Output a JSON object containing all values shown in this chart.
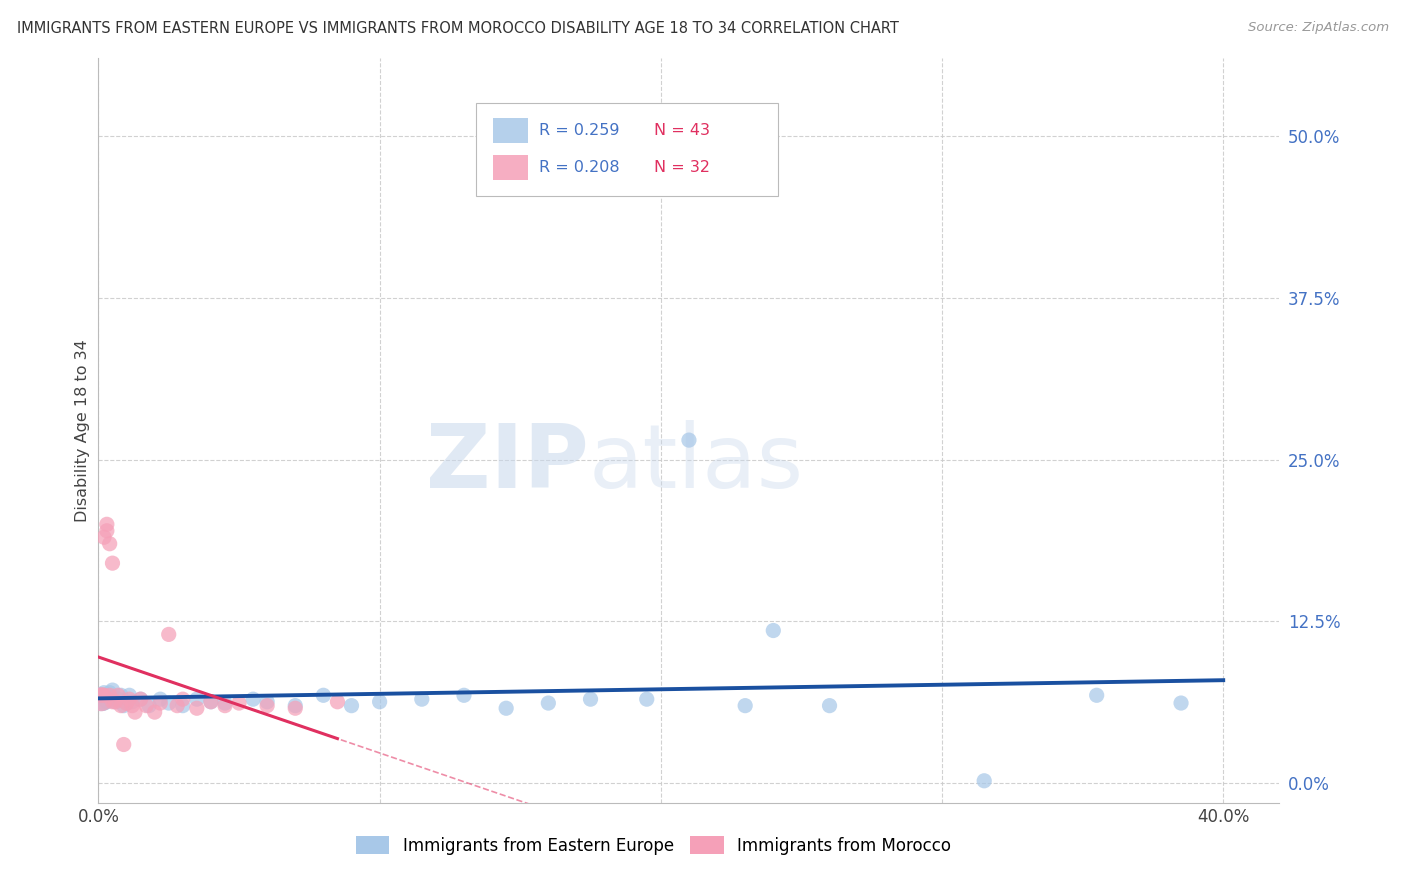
{
  "title": "IMMIGRANTS FROM EASTERN EUROPE VS IMMIGRANTS FROM MOROCCO DISABILITY AGE 18 TO 34 CORRELATION CHART",
  "source": "Source: ZipAtlas.com",
  "ylabel": "Disability Age 18 to 34",
  "xlim": [
    0.0,
    0.42
  ],
  "ylim": [
    -0.015,
    0.56
  ],
  "yticks": [
    0.0,
    0.125,
    0.25,
    0.375,
    0.5
  ],
  "ytick_labels": [
    "0.0%",
    "12.5%",
    "25.0%",
    "37.5%",
    "50.0%"
  ],
  "xticks": [
    0.0,
    0.1,
    0.2,
    0.3,
    0.4
  ],
  "xtick_labels": [
    "0.0%",
    "",
    "",
    "",
    "40.0%"
  ],
  "series1_color": "#a8c8e8",
  "series2_color": "#f5a0b8",
  "trend1_color": "#1a50a0",
  "trend2_color": "#e03060",
  "R1": 0.259,
  "N1": 43,
  "R2": 0.208,
  "N2": 32,
  "watermark_zip": "ZIP",
  "watermark_atlas": "atlas",
  "legend_label1": "Immigrants from Eastern Europe",
  "legend_label2": "Immigrants from Morocco",
  "ee_x": [
    0.001,
    0.001,
    0.002,
    0.002,
    0.003,
    0.003,
    0.004,
    0.005,
    0.005,
    0.006,
    0.007,
    0.008,
    0.009,
    0.01,
    0.011,
    0.012,
    0.015,
    0.018,
    0.022,
    0.025,
    0.03,
    0.035,
    0.04,
    0.045,
    0.055,
    0.06,
    0.07,
    0.08,
    0.09,
    0.1,
    0.115,
    0.13,
    0.145,
    0.16,
    0.175,
    0.195,
    0.21,
    0.23,
    0.24,
    0.26,
    0.315,
    0.355,
    0.385
  ],
  "ee_y": [
    0.065,
    0.068,
    0.062,
    0.07,
    0.063,
    0.068,
    0.07,
    0.065,
    0.072,
    0.063,
    0.065,
    0.068,
    0.06,
    0.062,
    0.068,
    0.063,
    0.065,
    0.06,
    0.065,
    0.062,
    0.06,
    0.065,
    0.063,
    0.062,
    0.065,
    0.063,
    0.06,
    0.068,
    0.06,
    0.063,
    0.065,
    0.068,
    0.058,
    0.062,
    0.065,
    0.065,
    0.265,
    0.06,
    0.118,
    0.06,
    0.002,
    0.068,
    0.062
  ],
  "ee_sizes": [
    300,
    120,
    120,
    120,
    120,
    120,
    120,
    120,
    120,
    120,
    120,
    120,
    120,
    120,
    120,
    120,
    120,
    120,
    120,
    120,
    120,
    120,
    120,
    120,
    120,
    120,
    120,
    120,
    120,
    120,
    120,
    120,
    120,
    120,
    120,
    120,
    120,
    120,
    120,
    120,
    120,
    120,
    120
  ],
  "mo_x": [
    0.001,
    0.001,
    0.002,
    0.002,
    0.003,
    0.003,
    0.004,
    0.004,
    0.005,
    0.005,
    0.006,
    0.007,
    0.008,
    0.009,
    0.01,
    0.011,
    0.012,
    0.013,
    0.015,
    0.017,
    0.02,
    0.022,
    0.025,
    0.028,
    0.03,
    0.035,
    0.04,
    0.045,
    0.05,
    0.06,
    0.07,
    0.085
  ],
  "mo_y": [
    0.065,
    0.068,
    0.19,
    0.068,
    0.195,
    0.2,
    0.185,
    0.068,
    0.063,
    0.17,
    0.063,
    0.068,
    0.06,
    0.03,
    0.062,
    0.065,
    0.06,
    0.055,
    0.065,
    0.06,
    0.055,
    0.062,
    0.115,
    0.06,
    0.065,
    0.058,
    0.063,
    0.06,
    0.062,
    0.06,
    0.058,
    0.063
  ],
  "mo_sizes": [
    300,
    120,
    120,
    120,
    120,
    120,
    120,
    120,
    120,
    120,
    120,
    120,
    120,
    120,
    120,
    120,
    120,
    120,
    120,
    120,
    120,
    120,
    120,
    120,
    120,
    120,
    120,
    120,
    120,
    120,
    120,
    120
  ]
}
